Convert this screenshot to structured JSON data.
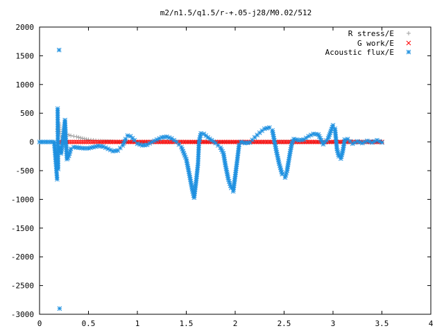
{
  "chart_data": {
    "type": "scatter",
    "title": "m2/n1.5/q1.5/r-+.05-j28/M0.02/512",
    "xlabel": "",
    "ylabel": "",
    "xlim": [
      0,
      4
    ],
    "ylim": [
      -3000,
      2000
    ],
    "x_ticks": [
      0,
      0.5,
      1,
      1.5,
      2,
      2.5,
      3,
      3.5,
      4
    ],
    "x_tick_labels": [
      "0",
      "0.5",
      "1",
      "1.5",
      "2",
      "2.5",
      "3",
      "3.5",
      "4"
    ],
    "y_ticks": [
      -3000,
      -2500,
      -2000,
      -1500,
      -1000,
      -500,
      0,
      500,
      1000,
      1500,
      2000
    ],
    "y_tick_labels": [
      "-3000",
      "-2500",
      "-2000",
      "-1500",
      "-1000",
      "-500",
      "0",
      "500",
      "1000",
      "1500",
      "2000"
    ],
    "grid": false,
    "legend_position": "top-right",
    "series": [
      {
        "name": "R stress/E",
        "marker": "plus",
        "color": "#a0a0a0",
        "points": [
          [
            0.18,
            180
          ],
          [
            0.19,
            260
          ],
          [
            0.2,
            330
          ],
          [
            0.21,
            150
          ],
          [
            0.22,
            90
          ],
          [
            0.24,
            110
          ],
          [
            0.26,
            80
          ],
          [
            0.28,
            130
          ],
          [
            0.3,
            120
          ],
          [
            0.32,
            110
          ],
          [
            0.35,
            100
          ],
          [
            0.38,
            90
          ],
          [
            0.42,
            70
          ],
          [
            0.46,
            55
          ],
          [
            0.5,
            40
          ],
          [
            0.55,
            30
          ],
          [
            0.6,
            20
          ],
          [
            0.7,
            10
          ],
          [
            0.8,
            5
          ],
          [
            1.0,
            3
          ],
          [
            1.3,
            2
          ],
          [
            1.6,
            1
          ],
          [
            2.0,
            0
          ],
          [
            2.5,
            0
          ],
          [
            3.0,
            0
          ],
          [
            3.5,
            0
          ]
        ]
      },
      {
        "name": "G work/E",
        "marker": "cross",
        "color": "#ff0000",
        "points": [
          [
            0.2,
            0
          ],
          [
            0.3,
            0
          ],
          [
            0.4,
            0
          ],
          [
            0.5,
            0
          ],
          [
            0.6,
            0
          ],
          [
            0.8,
            0
          ],
          [
            1.0,
            0
          ],
          [
            1.2,
            0
          ],
          [
            1.4,
            0
          ],
          [
            1.6,
            0
          ],
          [
            1.8,
            0
          ],
          [
            2.0,
            0
          ],
          [
            2.2,
            0
          ],
          [
            2.4,
            0
          ],
          [
            2.6,
            0
          ],
          [
            2.8,
            0
          ],
          [
            3.0,
            0
          ],
          [
            3.2,
            0
          ],
          [
            3.4,
            0
          ],
          [
            3.5,
            0
          ]
        ]
      },
      {
        "name": "Acoustic flux/E",
        "marker": "star",
        "color": "#1e90e0",
        "points": [
          [
            0.0,
            0
          ],
          [
            0.05,
            0
          ],
          [
            0.1,
            0
          ],
          [
            0.15,
            0
          ],
          [
            0.18,
            -650
          ],
          [
            0.185,
            580
          ],
          [
            0.19,
            -470
          ],
          [
            0.2,
            1600
          ],
          [
            0.205,
            -2900
          ],
          [
            0.21,
            -100
          ],
          [
            0.22,
            -200
          ],
          [
            0.23,
            -80
          ],
          [
            0.25,
            210
          ],
          [
            0.26,
            380
          ],
          [
            0.27,
            0
          ],
          [
            0.28,
            -300
          ],
          [
            0.29,
            -280
          ],
          [
            0.3,
            -240
          ],
          [
            0.32,
            -120
          ],
          [
            0.35,
            -90
          ],
          [
            0.4,
            -100
          ],
          [
            0.45,
            -110
          ],
          [
            0.5,
            -110
          ],
          [
            0.55,
            -90
          ],
          [
            0.6,
            -70
          ],
          [
            0.65,
            -80
          ],
          [
            0.7,
            -120
          ],
          [
            0.75,
            -160
          ],
          [
            0.8,
            -150
          ],
          [
            0.85,
            -60
          ],
          [
            0.88,
            50
          ],
          [
            0.9,
            110
          ],
          [
            0.93,
            100
          ],
          [
            0.97,
            30
          ],
          [
            1.0,
            -30
          ],
          [
            1.05,
            -60
          ],
          [
            1.1,
            -50
          ],
          [
            1.15,
            0
          ],
          [
            1.2,
            40
          ],
          [
            1.25,
            80
          ],
          [
            1.3,
            90
          ],
          [
            1.35,
            60
          ],
          [
            1.4,
            0
          ],
          [
            1.45,
            -90
          ],
          [
            1.5,
            -300
          ],
          [
            1.53,
            -550
          ],
          [
            1.56,
            -820
          ],
          [
            1.58,
            -970
          ],
          [
            1.6,
            -700
          ],
          [
            1.62,
            -380
          ],
          [
            1.63,
            0
          ],
          [
            1.65,
            150
          ],
          [
            1.68,
            140
          ],
          [
            1.72,
            80
          ],
          [
            1.76,
            30
          ],
          [
            1.8,
            -20
          ],
          [
            1.85,
            -100
          ],
          [
            1.88,
            -200
          ],
          [
            1.9,
            -400
          ],
          [
            1.93,
            -650
          ],
          [
            1.96,
            -800
          ],
          [
            1.98,
            -860
          ],
          [
            2.0,
            -600
          ],
          [
            2.02,
            -330
          ],
          [
            2.04,
            -50
          ],
          [
            2.06,
            0
          ],
          [
            2.1,
            -20
          ],
          [
            2.15,
            -10
          ],
          [
            2.2,
            80
          ],
          [
            2.25,
            160
          ],
          [
            2.3,
            230
          ],
          [
            2.35,
            250
          ],
          [
            2.38,
            200
          ],
          [
            2.4,
            30
          ],
          [
            2.42,
            -150
          ],
          [
            2.45,
            -380
          ],
          [
            2.48,
            -560
          ],
          [
            2.51,
            -620
          ],
          [
            2.53,
            -500
          ],
          [
            2.56,
            -200
          ],
          [
            2.58,
            -20
          ],
          [
            2.6,
            50
          ],
          [
            2.65,
            30
          ],
          [
            2.7,
            40
          ],
          [
            2.75,
            100
          ],
          [
            2.8,
            140
          ],
          [
            2.85,
            130
          ],
          [
            2.9,
            -40
          ],
          [
            2.95,
            60
          ],
          [
            3.0,
            290
          ],
          [
            3.02,
            230
          ],
          [
            3.04,
            -120
          ],
          [
            3.06,
            -250
          ],
          [
            3.08,
            -290
          ],
          [
            3.1,
            -160
          ],
          [
            3.12,
            40
          ],
          [
            3.15,
            50
          ],
          [
            3.2,
            -30
          ],
          [
            3.25,
            10
          ],
          [
            3.3,
            -20
          ],
          [
            3.35,
            20
          ],
          [
            3.4,
            -10
          ],
          [
            3.45,
            30
          ],
          [
            3.5,
            -10
          ]
        ]
      }
    ]
  }
}
